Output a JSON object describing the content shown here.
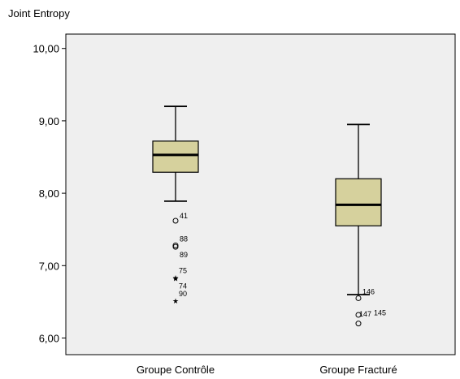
{
  "chart_data": {
    "type": "boxplot",
    "title": "Joint Entropy",
    "ylim": [
      5.8,
      10.25
    ],
    "yticks": [
      6,
      7,
      8,
      9,
      10
    ],
    "ytick_labels": [
      "6,00",
      "7,00",
      "8,00",
      "9,00",
      "10,00"
    ],
    "grid": false,
    "colors": {
      "box_fill": "#d6d19d",
      "plot_bg": "#efefef",
      "median": "#000000"
    },
    "categories": [
      "Groupe Contrôle",
      "Groupe Fracturé"
    ],
    "boxes": [
      {
        "category": "Groupe Contrôle",
        "whisker_low": 7.89,
        "q1": 8.29,
        "median": 8.53,
        "q3": 8.72,
        "whisker_high": 9.2,
        "outliers": [
          {
            "id": "41",
            "value": 7.62,
            "marker": "circle"
          },
          {
            "id": "88",
            "value": 7.28,
            "marker": "circle"
          },
          {
            "id": "89",
            "value": 7.26,
            "marker": "circle"
          }
        ],
        "extremes": [
          {
            "id": "75",
            "value": 6.84,
            "marker": "star"
          },
          {
            "id": "74",
            "value": 6.83,
            "marker": "star"
          },
          {
            "id": "90",
            "value": 6.52,
            "marker": "star"
          }
        ]
      },
      {
        "category": "Groupe Fracturé",
        "whisker_low": 6.6,
        "q1": 7.55,
        "median": 7.84,
        "q3": 8.2,
        "whisker_high": 8.95,
        "outliers": [
          {
            "id": "146",
            "value": 6.55,
            "marker": "circle"
          },
          {
            "id": "147",
            "value": 6.32,
            "marker": "circle"
          },
          {
            "id": "145",
            "value": 6.2,
            "marker": "circle"
          }
        ],
        "extremes": []
      }
    ]
  }
}
